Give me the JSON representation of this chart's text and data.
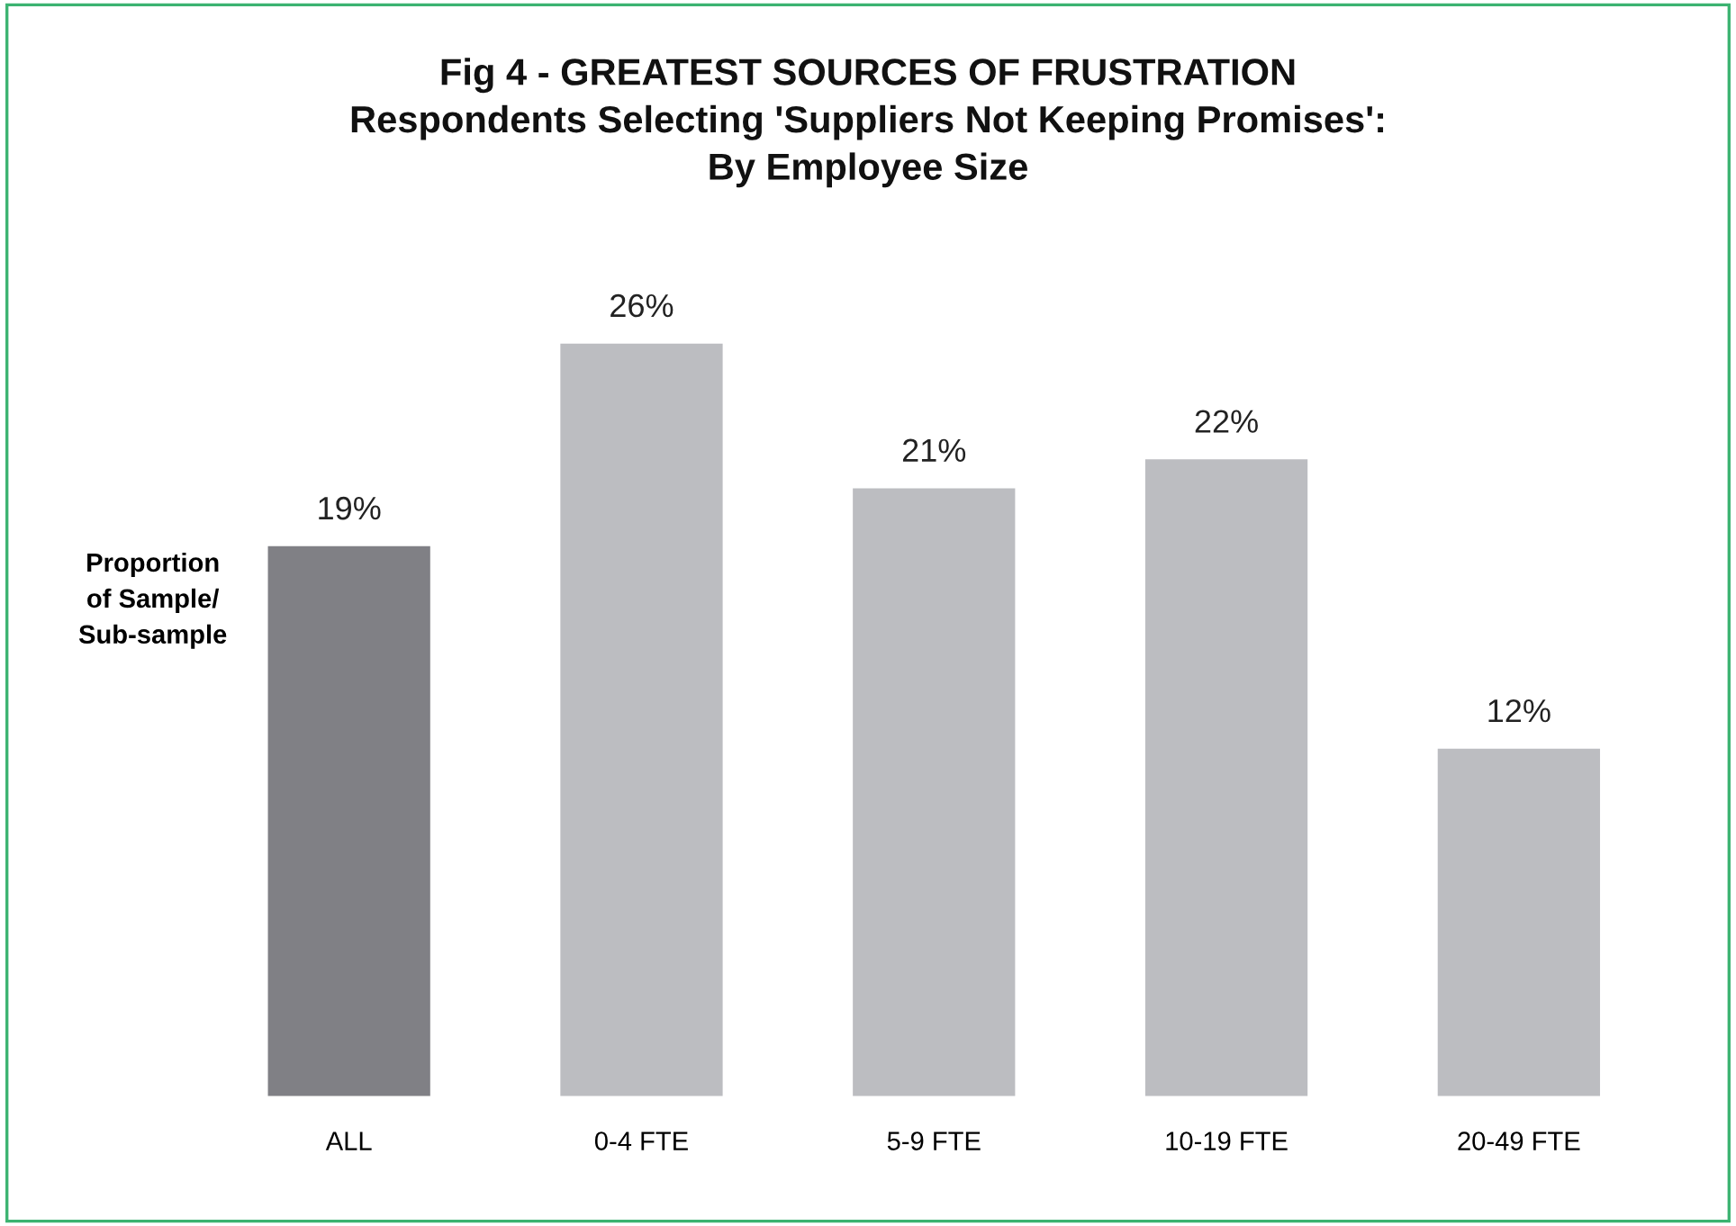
{
  "chart_data": {
    "type": "bar",
    "title": "Fig 4 - GREATEST SOURCES OF FRUSTRATION\nRespondents Selecting 'Suppliers Not Keeping Promises':\nBy Employee Size",
    "ylabel": "Proportion\nof Sample/\nSub-sample",
    "categories": [
      "ALL",
      "0-4 FTE",
      "5-9 FTE",
      "10-19 FTE",
      "20-49 FTE"
    ],
    "values": [
      19,
      26,
      21,
      22,
      12
    ],
    "colors": [
      "#808085",
      "#bcbdc1",
      "#bcbdc1",
      "#bcbdc1",
      "#bcbdc1"
    ],
    "value_labels": [
      "19%",
      "26%",
      "21%",
      "22%",
      "12%"
    ],
    "tick_labels": "x",
    "grid": false,
    "legend": false
  }
}
